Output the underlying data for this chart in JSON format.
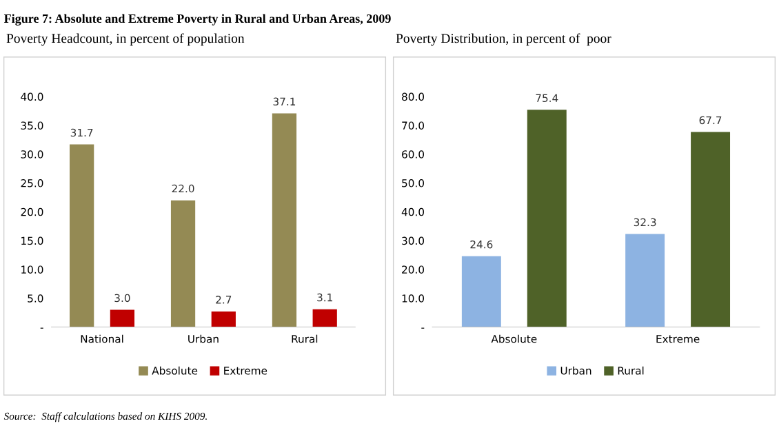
{
  "chart_data": [
    {
      "type": "bar",
      "title": "Figure 7: Absolute and Extreme Poverty in Rural and Urban Areas, 2009",
      "subtitle": "Poverty Headcount, in percent of population",
      "categories": [
        "National",
        "Urban",
        "Rural"
      ],
      "series": [
        {
          "name": "Absolute",
          "color": "#948a54",
          "values": [
            31.7,
            22.0,
            37.1
          ]
        },
        {
          "name": "Extreme",
          "color": "#c00000",
          "values": [
            3.0,
            2.7,
            3.1
          ]
        }
      ],
      "ylim": [
        0,
        40
      ],
      "yticks": [
        {
          "value": 0,
          "label": "-"
        },
        {
          "value": 5,
          "label": "5.0"
        },
        {
          "value": 10,
          "label": "10.0"
        },
        {
          "value": 15,
          "label": "15.0"
        },
        {
          "value": 20,
          "label": "20.0"
        },
        {
          "value": 25,
          "label": "25.0"
        },
        {
          "value": 30,
          "label": "30.0"
        },
        {
          "value": 35,
          "label": "35.0"
        },
        {
          "value": 40,
          "label": "40.0"
        }
      ],
      "value_labels": [
        [
          "31.7",
          "22.0",
          "37.1"
        ],
        [
          "3.0",
          "2.7",
          "3.1"
        ]
      ],
      "grid": false,
      "legend": "bottom",
      "annotations": [
        "Source:  Staff calculations based on KIHS 2009."
      ]
    },
    {
      "type": "bar",
      "title": "Poverty Distribution, in percent of  poor",
      "categories": [
        "Absolute",
        "Extreme"
      ],
      "series": [
        {
          "name": "Urban",
          "color": "#8db3e2",
          "values": [
            24.6,
            32.3
          ]
        },
        {
          "name": "Rural",
          "color": "#4f6228",
          "values": [
            75.4,
            67.7
          ]
        }
      ],
      "ylim": [
        0,
        80
      ],
      "yticks": [
        {
          "value": 0,
          "label": "-"
        },
        {
          "value": 10,
          "label": "10.0"
        },
        {
          "value": 20,
          "label": "20.0"
        },
        {
          "value": 30,
          "label": "30.0"
        },
        {
          "value": 40,
          "label": "40.0"
        },
        {
          "value": 50,
          "label": "50.0"
        },
        {
          "value": 60,
          "label": "60.0"
        },
        {
          "value": 70,
          "label": "70.0"
        },
        {
          "value": 80,
          "label": "80.0"
        }
      ],
      "value_labels": [
        [
          "24.6",
          "32.3"
        ],
        [
          "75.4",
          "67.7"
        ]
      ],
      "grid": false,
      "legend": "bottom"
    }
  ]
}
